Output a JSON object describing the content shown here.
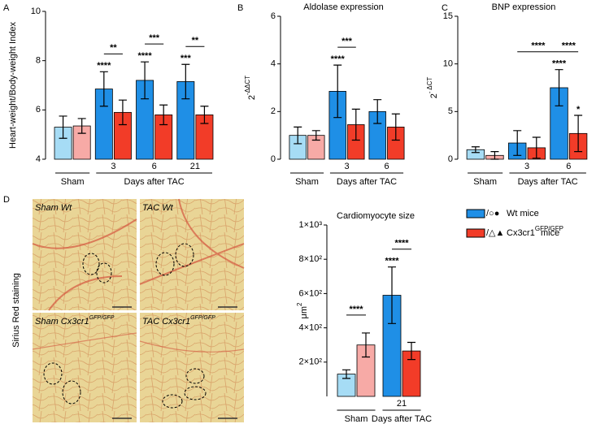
{
  "panel_letters": [
    "A",
    "B",
    "C",
    "D"
  ],
  "chart_data": [
    {
      "type": "bar",
      "ylabel": {
        "text": "Heart-weight/Body-weight Index"
      },
      "categories": [
        "Sham",
        "3",
        "6",
        "21"
      ],
      "xlabel": "Days after TAC",
      "ylim": [
        4,
        10
      ],
      "yticks": [
        4,
        6,
        8,
        10
      ],
      "series": [
        {
          "colors": [
            "#a6dcf5",
            "#1f8fe6",
            "#1f8fe6",
            "#1f8fe6"
          ],
          "values": [
            5.3,
            6.85,
            7.2,
            7.15
          ],
          "errors": [
            0.45,
            0.7,
            0.75,
            0.7
          ]
        },
        {
          "colors": [
            "#f7aaa6",
            "#f23c28",
            "#f23c28",
            "#f23c28"
          ],
          "values": [
            5.35,
            5.9,
            5.8,
            5.8
          ],
          "errors": [
            0.3,
            0.5,
            0.4,
            0.35
          ]
        }
      ],
      "annotations": [
        {
          "text": "****",
          "bar": [
            1,
            0
          ]
        },
        {
          "text": "****",
          "bar": [
            2,
            0
          ]
        },
        {
          "text": "***",
          "bar": [
            3,
            0
          ]
        },
        {
          "text": "**",
          "between": [
            [
              1,
              0
            ],
            [
              1,
              1
            ]
          ]
        },
        {
          "text": "***",
          "between": [
            [
              2,
              0
            ],
            [
              2,
              1
            ]
          ]
        },
        {
          "text": "**",
          "between": [
            [
              3,
              0
            ],
            [
              3,
              1
            ]
          ]
        }
      ]
    },
    {
      "type": "bar",
      "title": "Aldolase expression",
      "ylabel": {
        "text": "2",
        "sup": "-ΔΔCT"
      },
      "categories": [
        "Sham",
        "3",
        "6"
      ],
      "xlabel": "Days after TAC",
      "ylim": [
        0,
        6
      ],
      "yticks": [
        0,
        2,
        4,
        6
      ],
      "series": [
        {
          "colors": [
            "#a6dcf5",
            "#1f8fe6",
            "#1f8fe6"
          ],
          "values": [
            1.0,
            2.85,
            2.0
          ],
          "errors": [
            0.35,
            1.1,
            0.5
          ]
        },
        {
          "colors": [
            "#f7aaa6",
            "#f23c28",
            "#f23c28"
          ],
          "values": [
            1.0,
            1.45,
            1.35
          ],
          "errors": [
            0.2,
            0.65,
            0.55
          ]
        }
      ],
      "annotations": [
        {
          "text": "****",
          "bar": [
            1,
            0
          ]
        },
        {
          "text": "***",
          "between": [
            [
              1,
              0
            ],
            [
              1,
              1
            ]
          ]
        }
      ]
    },
    {
      "type": "bar",
      "title": "BNP expression",
      "ylabel": {
        "text": "2",
        "sup": "- ΔCT"
      },
      "categories": [
        "Sham",
        "3",
        "6"
      ],
      "xlabel": "Days after TAC",
      "ylim": [
        0,
        15
      ],
      "yticks": [
        0,
        5,
        10,
        15
      ],
      "series": [
        {
          "colors": [
            "#a6dcf5",
            "#1f8fe6",
            "#1f8fe6"
          ],
          "values": [
            1.0,
            1.7,
            7.5
          ],
          "errors": [
            0.3,
            1.3,
            1.9
          ]
        },
        {
          "colors": [
            "#f7aaa6",
            "#f23c28",
            "#f23c28"
          ],
          "values": [
            0.4,
            1.2,
            2.7
          ],
          "errors": [
            0.4,
            1.1,
            1.9
          ]
        }
      ],
      "annotations": [
        {
          "text": "****",
          "bar": [
            2,
            0
          ]
        },
        {
          "text": "*",
          "bar": [
            2,
            1
          ]
        },
        {
          "text": "****",
          "between": [
            [
              1,
              0
            ],
            [
              2,
              0
            ]
          ]
        },
        {
          "text": "****",
          "between": [
            [
              2,
              0
            ],
            [
              2,
              1
            ]
          ]
        }
      ]
    },
    {
      "type": "bar",
      "title": "Cardiomyocyte size",
      "ylabel": {
        "text": "μm",
        "sup": "2"
      },
      "categories": [
        "Sham",
        "21"
      ],
      "xlabel": "Days after TAC",
      "ylim": [
        0,
        1000
      ],
      "yticks": [
        {
          "value": 200,
          "label": "2×10²"
        },
        {
          "value": 400,
          "label": "4×10²"
        },
        {
          "value": 600,
          "label": "6×10²"
        },
        {
          "value": 800,
          "label": "8×10²"
        },
        {
          "value": 1000,
          "label": "1×10³"
        }
      ],
      "series": [
        {
          "colors": [
            "#a6dcf5",
            "#1f8fe6"
          ],
          "values": [
            130,
            590
          ],
          "errors": [
            25,
            165
          ]
        },
        {
          "colors": [
            "#f7aaa6",
            "#f23c28"
          ],
          "values": [
            300,
            265
          ],
          "errors": [
            70,
            50
          ]
        }
      ],
      "annotations": [
        {
          "text": "****",
          "between": [
            [
              0,
              0
            ],
            [
              0,
              1
            ]
          ]
        },
        {
          "text": "****",
          "bar": [
            1,
            0
          ]
        },
        {
          "text": "****",
          "between": [
            [
              1,
              0
            ],
            [
              1,
              1
            ]
          ]
        }
      ],
      "legend": [
        {
          "text": "Wt mice"
        },
        {
          "text": "Cx3cr1",
          "sup": "GFP/GFP",
          "suffix": "mice"
        }
      ]
    }
  ],
  "micrographs": {
    "side_label": "Sirius Red staining",
    "panels": [
      {
        "text": "Sham Wt"
      },
      {
        "text": "TAC Wt"
      },
      {
        "text": "Sham Cx3cr1",
        "sup": "GFP/GFP"
      },
      {
        "text": "TAC Cx3cr1",
        "sup": "GFP/GFP"
      }
    ]
  }
}
